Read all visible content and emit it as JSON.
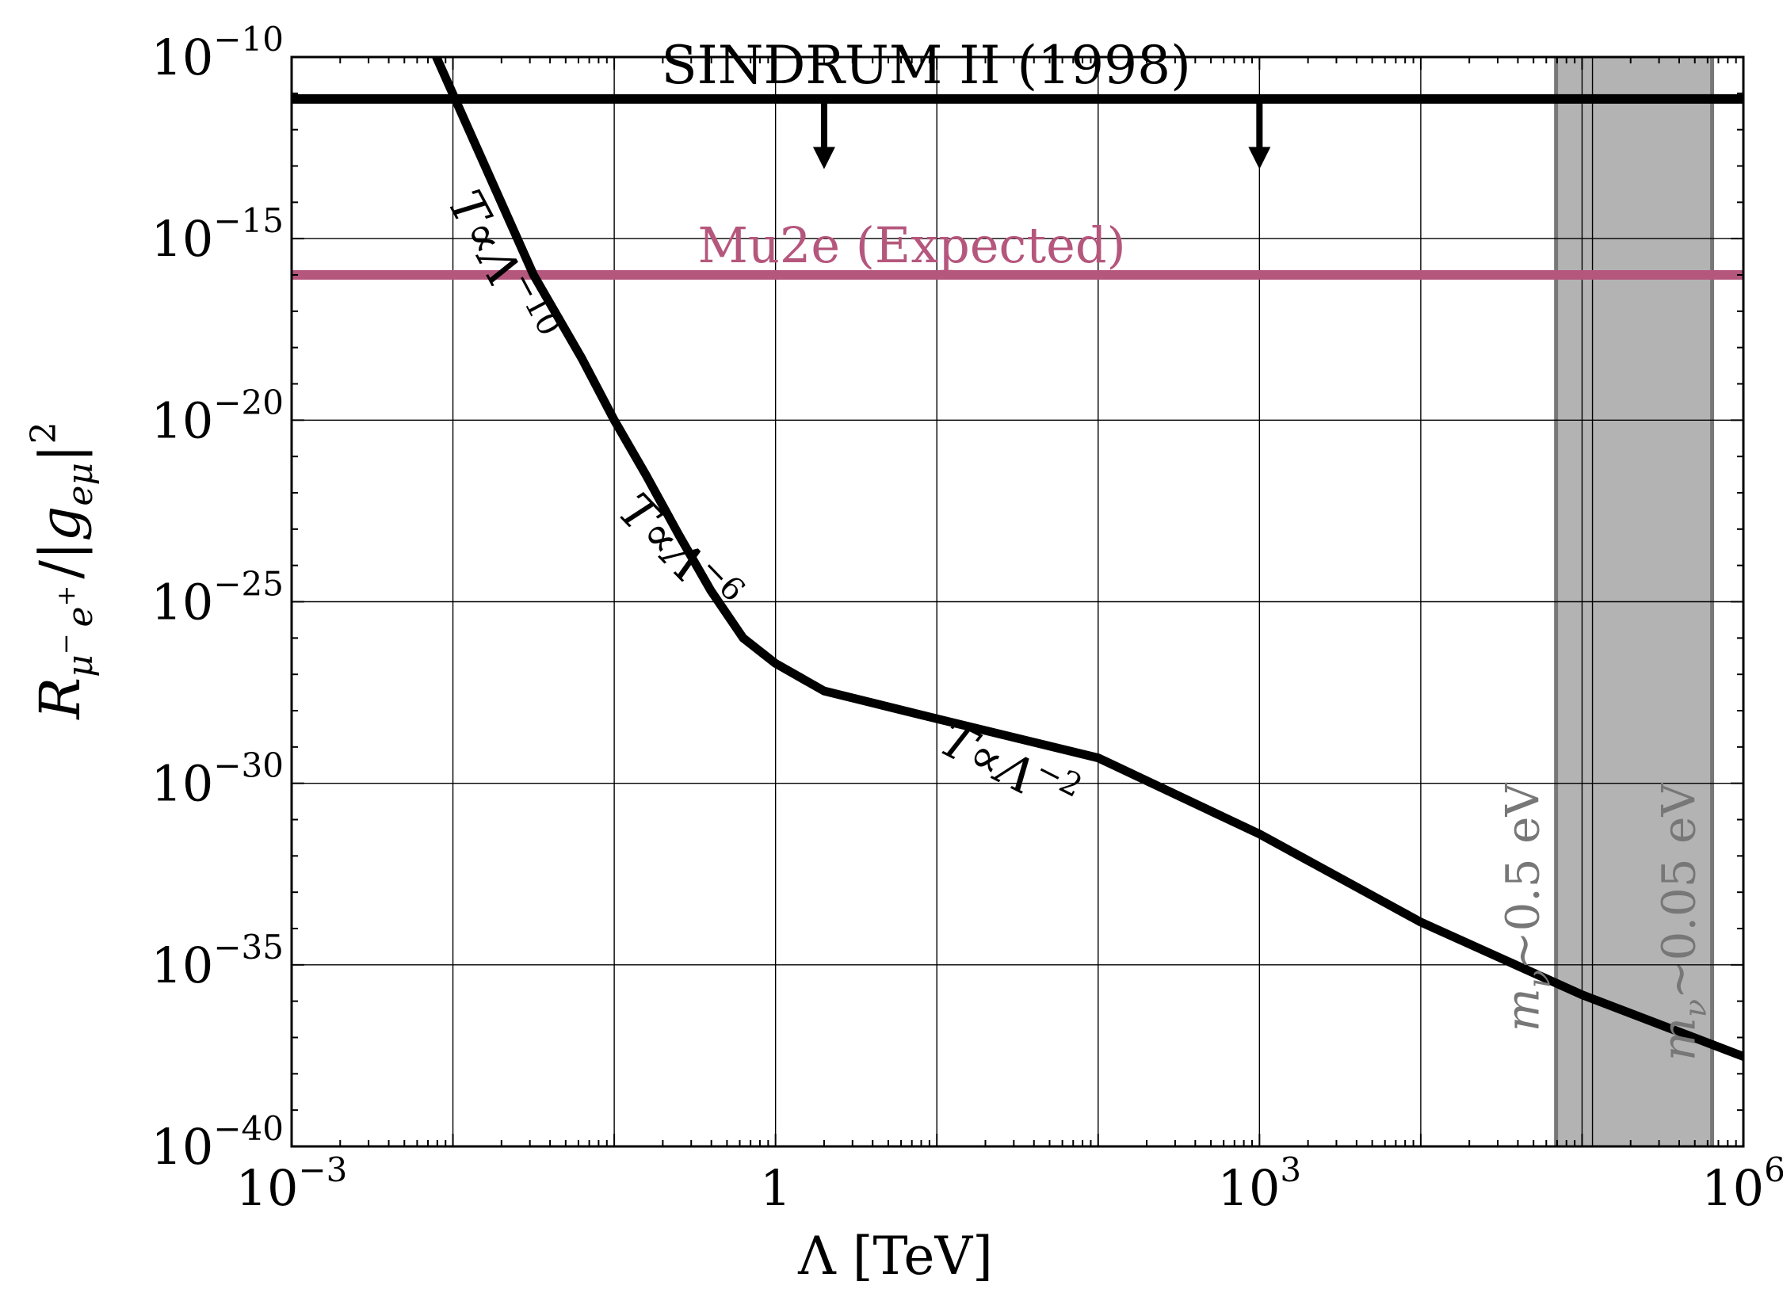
{
  "chart_data": {
    "type": "line",
    "title": "",
    "xlabel": "Λ [TeV]",
    "ylabel_parts": {
      "base": "R",
      "sub1": "μ",
      "sub1_sup": "−",
      "sub2": "e",
      "sub2_sup": "+",
      "sep": "/|",
      "g": "g",
      "g_sub": "eμ",
      "close": "|",
      "power": "2"
    },
    "x_scale": "log",
    "y_scale": "log",
    "xlim": [
      0.001,
      1000000
    ],
    "ylim": [
      1e-40,
      1e-10
    ],
    "grid": true,
    "x_ticks": [
      {
        "value": 0.001,
        "base": "10",
        "exp": "−3"
      },
      {
        "value": 1,
        "base": "1",
        "exp": ""
      },
      {
        "value": 1000,
        "base": "10",
        "exp": "3"
      },
      {
        "value": 1000000,
        "base": "10",
        "exp": "6"
      }
    ],
    "y_ticks": [
      {
        "value": 1e-10,
        "base": "10",
        "exp": "−10"
      },
      {
        "value": 1e-15,
        "base": "10",
        "exp": "−15"
      },
      {
        "value": 1e-20,
        "base": "10",
        "exp": "−20"
      },
      {
        "value": 1e-25,
        "base": "10",
        "exp": "−25"
      },
      {
        "value": 1e-30,
        "base": "10",
        "exp": "−30"
      },
      {
        "value": 1e-35,
        "base": "10",
        "exp": "−35"
      },
      {
        "value": 1e-40,
        "base": "10",
        "exp": "−40"
      }
    ],
    "series": [
      {
        "name": "rate",
        "color": "#000000",
        "x": [
          0.0079,
          0.0158,
          0.0316,
          0.063,
          0.1,
          0.158,
          0.251,
          0.398,
          0.63,
          1.0,
          2.0,
          10,
          100,
          1000,
          10000,
          100000,
          1000000
        ],
        "y": [
          1e-10,
          1e-13,
          1e-16,
          5e-19,
          1e-20,
          3e-22,
          7e-24,
          2e-25,
          1e-26,
          2e-27,
          3.5e-28,
          6e-29,
          5e-30,
          4e-32,
          1.5e-34,
          1.5e-36,
          3e-38
        ]
      }
    ],
    "hlines": [
      {
        "name": "SINDRUM II (1998)",
        "y": 7e-12,
        "color": "#000000",
        "label_x": 1.0
      },
      {
        "name": "Mu2e (Expected)",
        "y": 1e-16,
        "color": "#b5577d",
        "label_x": 1.8
      }
    ],
    "arrows": [
      {
        "x": 2.0,
        "from_y": 7e-12,
        "to_y": 1e-13
      },
      {
        "x": 1000,
        "from_y": 7e-12,
        "to_y": 1e-13
      }
    ],
    "shaded_region": {
      "x_start": 69000,
      "x_end": 640000,
      "color": "#b3b3b3"
    },
    "vlines": [
      {
        "x": 69000,
        "label": "m",
        "label_sub": "ν",
        "label_rest": "∼0.5 eV",
        "color": "#777777"
      },
      {
        "x": 640000,
        "label": "m",
        "label_sub": "ν",
        "label_rest": "∼0.05 eV",
        "color": "#777777"
      }
    ],
    "extra_gridline_x": [
      116000
    ],
    "slope_annotations": [
      {
        "text": "T∝Λ",
        "exp": "−10",
        "x": 0.016,
        "y": 1e-16,
        "rotation": 62
      },
      {
        "text": "T∝Λ",
        "exp": "−6",
        "x": 0.21,
        "y": 1e-24,
        "rotation": 46
      },
      {
        "text": "T∝Λ",
        "exp": "−2",
        "x": 25,
        "y": 1e-30,
        "rotation": 27
      }
    ]
  }
}
